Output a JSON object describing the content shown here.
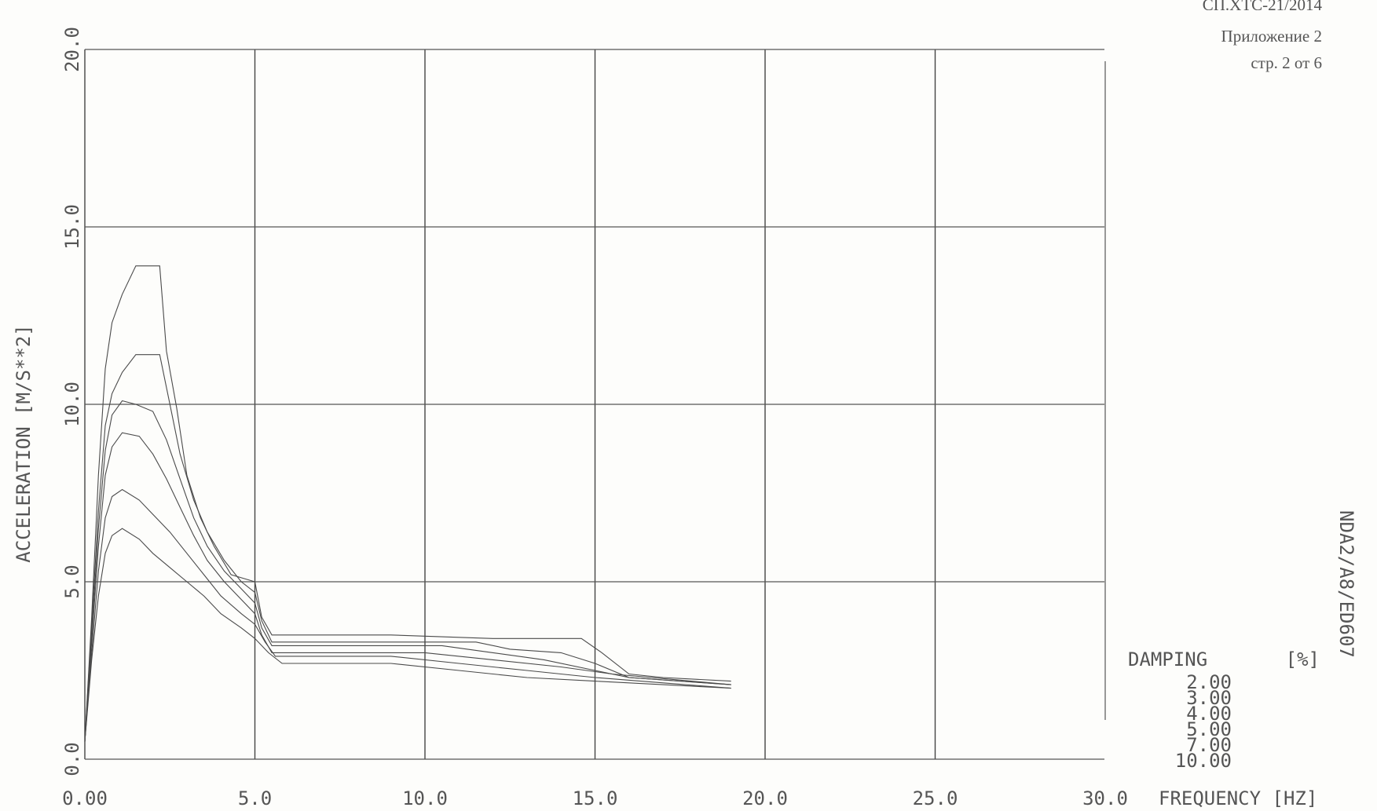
{
  "header": {
    "doc_code": "СП.ХТС-21/2014",
    "appendix": "Приложение 2",
    "page": "стр. 2 от 6"
  },
  "side_code": "NDA2/A8/ED607",
  "chart_data": {
    "type": "line",
    "title": "",
    "xlabel": "FREQUENCY [HZ]",
    "ylabel": "ACCELERATION [M/S**2]",
    "xlim": [
      0,
      30
    ],
    "ylim": [
      0,
      20
    ],
    "x_ticks": [
      "0.00",
      "5.0",
      "10.0",
      "15.0",
      "20.0",
      "25.0",
      "30.0"
    ],
    "y_ticks": [
      "0.0",
      "5.0",
      "10.0",
      "15.0",
      "20.0"
    ],
    "grid": true,
    "legend": {
      "title": "DAMPING",
      "unit": "[%]",
      "placement": "bottom-right",
      "entries": [
        "2.00",
        "3.00",
        "4.00",
        "5.00",
        "7.00",
        "10.00"
      ]
    },
    "series": [
      {
        "name": "2.00",
        "points": [
          [
            0,
            0.5
          ],
          [
            0.2,
            4
          ],
          [
            0.4,
            8
          ],
          [
            0.6,
            11
          ],
          [
            0.8,
            12.3
          ],
          [
            1.1,
            13.1
          ],
          [
            1.5,
            13.9
          ],
          [
            2.2,
            13.9
          ],
          [
            2.4,
            11.5
          ],
          [
            2.7,
            9.9
          ],
          [
            3.0,
            8.0
          ],
          [
            3.4,
            6.8
          ],
          [
            3.8,
            6.0
          ],
          [
            4.3,
            5.2
          ],
          [
            5.0,
            5.0
          ],
          [
            5.2,
            4.0
          ],
          [
            5.5,
            3.5
          ],
          [
            9.0,
            3.5
          ],
          [
            12.0,
            3.4
          ],
          [
            14.6,
            3.4
          ],
          [
            15.2,
            3.0
          ],
          [
            16.0,
            2.4
          ],
          [
            17.0,
            2.3
          ],
          [
            19.0,
            2.2
          ]
        ]
      },
      {
        "name": "3.00",
        "points": [
          [
            0,
            0.5
          ],
          [
            0.2,
            3.8
          ],
          [
            0.4,
            7
          ],
          [
            0.6,
            9.4
          ],
          [
            0.8,
            10.3
          ],
          [
            1.1,
            10.9
          ],
          [
            1.5,
            11.4
          ],
          [
            2.2,
            11.4
          ],
          [
            2.5,
            10.0
          ],
          [
            2.8,
            8.6
          ],
          [
            3.2,
            7.3
          ],
          [
            3.6,
            6.4
          ],
          [
            4.1,
            5.6
          ],
          [
            4.6,
            5.0
          ],
          [
            5.0,
            4.7
          ],
          [
            5.2,
            3.9
          ],
          [
            5.5,
            3.3
          ],
          [
            9.0,
            3.3
          ],
          [
            11.5,
            3.3
          ],
          [
            12.5,
            3.1
          ],
          [
            14.0,
            3.0
          ],
          [
            15.0,
            2.7
          ],
          [
            16.0,
            2.3
          ],
          [
            17.5,
            2.2
          ],
          [
            19.0,
            2.1
          ]
        ]
      },
      {
        "name": "4.00",
        "points": [
          [
            0,
            0.5
          ],
          [
            0.2,
            3.5
          ],
          [
            0.4,
            6.5
          ],
          [
            0.6,
            8.7
          ],
          [
            0.8,
            9.7
          ],
          [
            1.1,
            10.1
          ],
          [
            1.5,
            10.0
          ],
          [
            2.0,
            9.8
          ],
          [
            2.4,
            9.0
          ],
          [
            2.8,
            7.9
          ],
          [
            3.2,
            6.8
          ],
          [
            3.6,
            6.0
          ],
          [
            4.1,
            5.3
          ],
          [
            4.6,
            4.8
          ],
          [
            5.0,
            4.4
          ],
          [
            5.2,
            3.7
          ],
          [
            5.5,
            3.2
          ],
          [
            10.5,
            3.2
          ],
          [
            12.0,
            3.0
          ],
          [
            13.5,
            2.8
          ],
          [
            15.0,
            2.5
          ],
          [
            16.0,
            2.3
          ],
          [
            19.0,
            2.1
          ]
        ]
      },
      {
        "name": "5.00",
        "points": [
          [
            0,
            0.5
          ],
          [
            0.2,
            3.3
          ],
          [
            0.4,
            6
          ],
          [
            0.6,
            8
          ],
          [
            0.8,
            8.8
          ],
          [
            1.1,
            9.2
          ],
          [
            1.6,
            9.1
          ],
          [
            2.0,
            8.6
          ],
          [
            2.4,
            7.9
          ],
          [
            2.8,
            7.1
          ],
          [
            3.2,
            6.3
          ],
          [
            3.6,
            5.6
          ],
          [
            4.1,
            5.0
          ],
          [
            4.6,
            4.5
          ],
          [
            5.0,
            4.1
          ],
          [
            5.2,
            3.5
          ],
          [
            5.5,
            3.0
          ],
          [
            10.0,
            3.0
          ],
          [
            12.0,
            2.8
          ],
          [
            14.0,
            2.6
          ],
          [
            15.5,
            2.4
          ],
          [
            19.0,
            2.1
          ]
        ]
      },
      {
        "name": "7.00",
        "points": [
          [
            0,
            0.5
          ],
          [
            0.2,
            3.0
          ],
          [
            0.4,
            5.3
          ],
          [
            0.6,
            6.8
          ],
          [
            0.8,
            7.4
          ],
          [
            1.1,
            7.6
          ],
          [
            1.6,
            7.3
          ],
          [
            2.0,
            6.9
          ],
          [
            2.5,
            6.4
          ],
          [
            3.0,
            5.8
          ],
          [
            3.5,
            5.2
          ],
          [
            4.0,
            4.6
          ],
          [
            4.6,
            4.1
          ],
          [
            5.0,
            3.8
          ],
          [
            5.3,
            3.3
          ],
          [
            5.6,
            2.9
          ],
          [
            9.0,
            2.9
          ],
          [
            11.0,
            2.7
          ],
          [
            13.0,
            2.5
          ],
          [
            15.0,
            2.3
          ],
          [
            19.0,
            2.0
          ]
        ]
      },
      {
        "name": "10.00",
        "points": [
          [
            0,
            0.5
          ],
          [
            0.2,
            2.8
          ],
          [
            0.4,
            4.6
          ],
          [
            0.6,
            5.8
          ],
          [
            0.8,
            6.3
          ],
          [
            1.1,
            6.5
          ],
          [
            1.6,
            6.2
          ],
          [
            2.0,
            5.8
          ],
          [
            2.5,
            5.4
          ],
          [
            3.0,
            5.0
          ],
          [
            3.5,
            4.6
          ],
          [
            4.0,
            4.1
          ],
          [
            4.6,
            3.7
          ],
          [
            5.0,
            3.4
          ],
          [
            5.4,
            3.0
          ],
          [
            5.8,
            2.7
          ],
          [
            9.0,
            2.7
          ],
          [
            11.0,
            2.5
          ],
          [
            13.0,
            2.3
          ],
          [
            15.0,
            2.2
          ],
          [
            19.0,
            2.0
          ]
        ]
      }
    ]
  }
}
